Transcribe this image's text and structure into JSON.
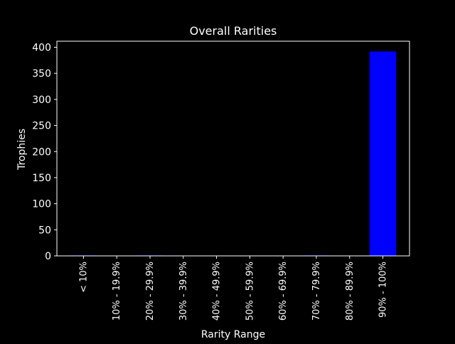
{
  "chart_data": {
    "type": "bar",
    "title": "Overall Rarities",
    "xlabel": "Rarity Range",
    "ylabel": "Trophies",
    "categories": [
      "< 10%",
      "10% - 19.9%",
      "20% - 29.9%",
      "30% - 39.9%",
      "40% - 49.9%",
      "50% - 59.9%",
      "60% - 69.9%",
      "70% - 79.9%",
      "80% - 89.9%",
      "90% - 100%"
    ],
    "values": [
      1,
      0,
      1,
      0,
      0,
      0,
      0,
      1,
      0,
      392
    ],
    "ylim": [
      0,
      411.6
    ],
    "yticks": [
      0,
      50,
      100,
      150,
      200,
      250,
      300,
      350,
      400
    ],
    "grid": false,
    "legend": "none",
    "colors": {
      "background": "#000000",
      "bar": "#0000ff",
      "text": "#ffffff",
      "axis": "#ffffff"
    }
  }
}
